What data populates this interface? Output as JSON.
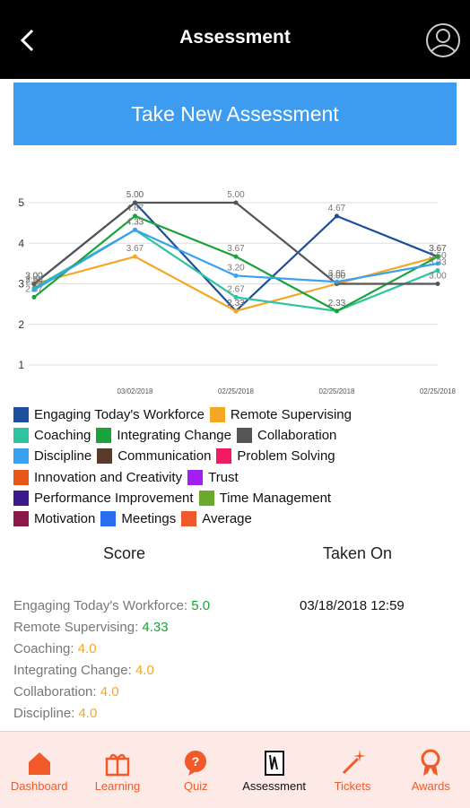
{
  "header": {
    "title": "Assessment"
  },
  "button": {
    "label": "Take New Assessment"
  },
  "chart_data": {
    "type": "line",
    "categories": [
      null,
      "03/02/2018",
      "02/25/2018",
      "02/25/2018",
      "02/25/2018"
    ],
    "ylim": [
      1,
      5
    ],
    "yticks": [
      1,
      2,
      3,
      4,
      5
    ],
    "grid": true,
    "series": [
      {
        "name": "Engaging Today's Workforce",
        "color": "#1f4e9c",
        "values": [
          3.0,
          5.0,
          2.33,
          4.67,
          3.67
        ],
        "value_labels": [
          "3.00",
          "5.00",
          "2.33",
          "4.67",
          "3.67"
        ]
      },
      {
        "name": "Remote Supervising",
        "color": "#f5a623",
        "values": [
          3.0,
          3.67,
          2.33,
          3.0,
          3.67
        ],
        "value_labels": [
          "3.00",
          "3.67",
          "2.33",
          "3.00",
          "3.67"
        ]
      },
      {
        "name": "Coaching",
        "color": "#2ec4a0",
        "values": [
          2.9,
          4.33,
          2.67,
          2.33,
          3.33
        ],
        "value_labels": [
          "2.90",
          "4.33",
          "2.67",
          "2.33",
          "3.33"
        ]
      },
      {
        "name": "Integrating Change",
        "color": "#1aa33a",
        "values": [
          2.67,
          4.67,
          3.67,
          2.33,
          3.67
        ],
        "value_labels": [
          "2.67",
          "4.67",
          "3.67",
          "2.33",
          "3.67"
        ]
      },
      {
        "name": "Collaboration",
        "color": "#555555",
        "values": [
          3.0,
          5.0,
          5.0,
          3.0,
          3.0
        ],
        "value_labels": [
          "3.00",
          "5.00",
          "5.00",
          "3.00",
          "3.00"
        ]
      },
      {
        "name": "Discipline",
        "color": "#3aa0f0",
        "values": [
          2.85,
          4.33,
          3.2,
          3.05,
          3.5
        ],
        "value_labels": [
          "2.85",
          "4.33",
          "3.20",
          "3.05",
          "3.50"
        ]
      },
      {
        "name": "Communication",
        "color": "#5b3a2e",
        "values": [
          null,
          null,
          null,
          null,
          null
        ]
      },
      {
        "name": "Problem Solving",
        "color": "#ef1c64",
        "values": [
          null,
          null,
          null,
          null,
          null
        ]
      },
      {
        "name": "Innovation and Creativity",
        "color": "#e8561a",
        "values": [
          null,
          null,
          null,
          null,
          null
        ]
      },
      {
        "name": "Trust",
        "color": "#a020f0",
        "values": [
          null,
          null,
          null,
          null,
          null
        ]
      },
      {
        "name": "Performance Improvement",
        "color": "#3c1a8c",
        "values": [
          null,
          null,
          null,
          null,
          null
        ]
      },
      {
        "name": "Time Management",
        "color": "#6aa82e",
        "values": [
          null,
          null,
          null,
          null,
          null
        ]
      },
      {
        "name": "Motivation",
        "color": "#8b1a4a",
        "values": [
          null,
          null,
          null,
          null,
          null
        ]
      },
      {
        "name": "Meetings",
        "color": "#2a6ef0",
        "values": [
          null,
          null,
          null,
          null,
          null
        ]
      },
      {
        "name": "Average",
        "color": "#f05a28",
        "values": [
          null,
          null,
          null,
          null,
          null
        ]
      }
    ]
  },
  "scores": {
    "score_header": "Score",
    "taken_header": "Taken On",
    "taken_on": "03/18/2018 12:59",
    "items": [
      {
        "label": "Engaging Today's Workforce:",
        "value": "5.0",
        "color": "#1aa33a"
      },
      {
        "label": "Remote Supervising:",
        "value": "4.33",
        "color": "#1aa33a"
      },
      {
        "label": "Coaching:",
        "value": "4.0",
        "color": "#f5a623"
      },
      {
        "label": "Integrating Change:",
        "value": "4.0",
        "color": "#f5a623"
      },
      {
        "label": "Collaboration:",
        "value": "4.0",
        "color": "#f5a623"
      },
      {
        "label": "Discipline:",
        "value": "4.0",
        "color": "#f5a623"
      }
    ]
  },
  "tabs": [
    {
      "label": "Dashboard"
    },
    {
      "label": "Learning"
    },
    {
      "label": "Quiz"
    },
    {
      "label": "Assessment",
      "active": true
    },
    {
      "label": "Tickets"
    },
    {
      "label": "Awards"
    }
  ]
}
